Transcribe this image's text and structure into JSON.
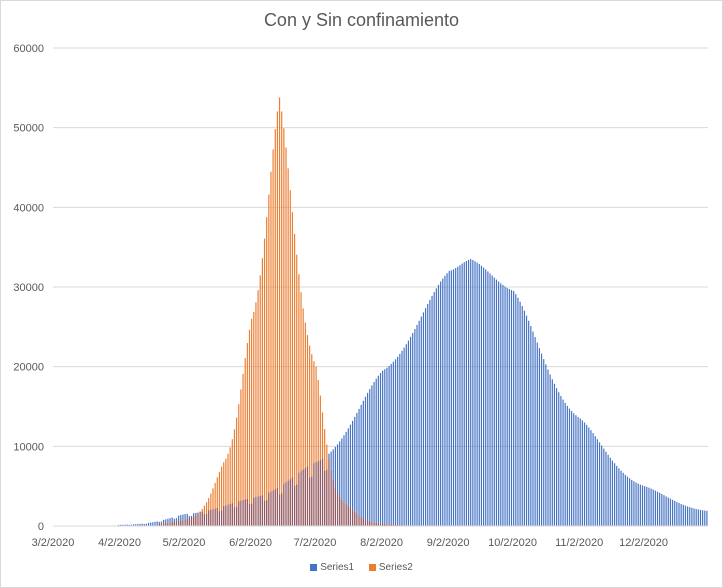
{
  "chart_data": {
    "type": "bar",
    "title": "Con y Sin confinamiento",
    "xlabel": "",
    "ylabel": "",
    "ylim": [
      0,
      60000
    ],
    "yticks": [
      "0",
      "10000",
      "20000",
      "30000",
      "40000",
      "50000",
      "60000"
    ],
    "xticks": [
      "3/2/2020",
      "4/2/2020",
      "5/2/2020",
      "6/2/2020",
      "7/2/2020",
      "8/2/2020",
      "9/2/2020",
      "10/2/2020",
      "11/2/2020",
      "12/2/2020"
    ],
    "x_range": [
      "3/2/2020",
      "12/31/2020"
    ],
    "grid": true,
    "legend_position": "bottom",
    "series": [
      {
        "name": "Series1",
        "color": "#4472c4",
        "shape": "bell",
        "peak_date": "9/12/2020",
        "peak_value": 33500,
        "start_date": "4/1/2020",
        "end_value": 1900,
        "sample_points": [
          {
            "x": "4/2/2020",
            "y": 150
          },
          {
            "x": "5/2/2020",
            "y": 1500
          },
          {
            "x": "6/2/2020",
            "y": 3500
          },
          {
            "x": "7/2/2020",
            "y": 8000
          },
          {
            "x": "8/2/2020",
            "y": 19500
          },
          {
            "x": "9/2/2020",
            "y": 32000
          },
          {
            "x": "9/12/2020",
            "y": 33500
          },
          {
            "x": "10/2/2020",
            "y": 29500
          },
          {
            "x": "11/2/2020",
            "y": 13500
          },
          {
            "x": "12/2/2020",
            "y": 5000
          },
          {
            "x": "12/31/2020",
            "y": 1900
          }
        ]
      },
      {
        "name": "Series2",
        "color": "#ed7d31",
        "shape": "bell",
        "peak_date": "6/15/2020",
        "peak_value": 53800,
        "start_date": "4/20/2020",
        "end_date": "8/10/2020",
        "sample_points": [
          {
            "x": "5/2/2020",
            "y": 800
          },
          {
            "x": "5/20/2020",
            "y": 8000
          },
          {
            "x": "6/2/2020",
            "y": 26000
          },
          {
            "x": "6/15/2020",
            "y": 53800
          },
          {
            "x": "7/2/2020",
            "y": 20000
          },
          {
            "x": "7/15/2020",
            "y": 3000
          },
          {
            "x": "8/2/2020",
            "y": 300
          }
        ]
      }
    ]
  },
  "legend": {
    "items": [
      {
        "label": "Series1",
        "color": "#4472c4"
      },
      {
        "label": "Series2",
        "color": "#ed7d31"
      }
    ]
  }
}
